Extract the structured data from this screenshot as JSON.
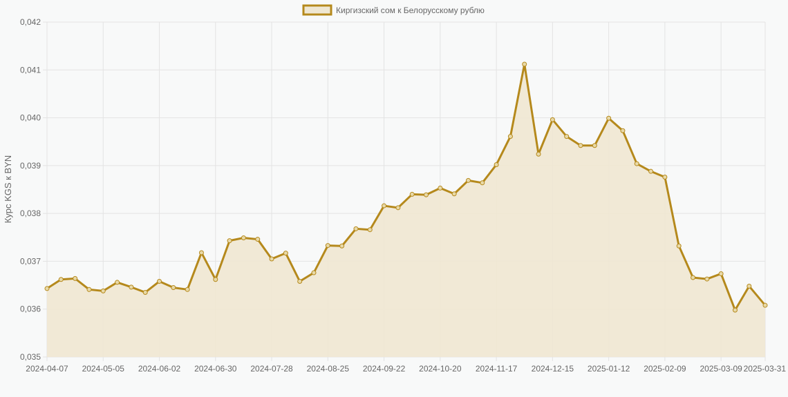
{
  "chart_data": {
    "type": "line",
    "title": "",
    "ylabel": "Курс KGS к BYN",
    "xlabel": "",
    "legend": {
      "position": "top-center",
      "entries": [
        "Киргизский сом к Белорусскому рублю"
      ]
    },
    "ylim": [
      0.035,
      0.042
    ],
    "yticks": [
      "0,035",
      "0,036",
      "0,037",
      "0,038",
      "0,039",
      "0,040",
      "0,041",
      "0,042"
    ],
    "xticks": [
      "2024-04-07",
      "2024-05-05",
      "2024-06-02",
      "2024-06-30",
      "2024-07-28",
      "2024-08-25",
      "2024-09-22",
      "2024-10-20",
      "2024-11-17",
      "2024-12-15",
      "2025-01-12",
      "2025-02-09",
      "2025-03-09",
      "2025-03-31"
    ],
    "grid": true,
    "fill": true,
    "colors": {
      "line": "#b5891c",
      "fill": "#efe7d2",
      "point_fill": "#e8d9a8",
      "grid": "#e3e3e3",
      "background": "#f8f9f9"
    },
    "series": [
      {
        "name": "Киргизский сом к Белорусскому рублю",
        "x": [
          "2024-04-07",
          "2024-04-14",
          "2024-04-21",
          "2024-04-28",
          "2024-05-05",
          "2024-05-12",
          "2024-05-19",
          "2024-05-26",
          "2024-06-02",
          "2024-06-09",
          "2024-06-16",
          "2024-06-23",
          "2024-06-30",
          "2024-07-07",
          "2024-07-14",
          "2024-07-21",
          "2024-07-28",
          "2024-08-04",
          "2024-08-11",
          "2024-08-18",
          "2024-08-25",
          "2024-09-01",
          "2024-09-08",
          "2024-09-15",
          "2024-09-22",
          "2024-09-29",
          "2024-10-06",
          "2024-10-13",
          "2024-10-20",
          "2024-10-27",
          "2024-11-03",
          "2024-11-10",
          "2024-11-17",
          "2024-11-24",
          "2024-12-01",
          "2024-12-08",
          "2024-12-15",
          "2024-12-22",
          "2024-12-29",
          "2025-01-05",
          "2025-01-12",
          "2025-01-19",
          "2025-01-26",
          "2025-02-02",
          "2025-02-09",
          "2025-02-16",
          "2025-02-23",
          "2025-03-02",
          "2025-03-09",
          "2025-03-16",
          "2025-03-23",
          "2025-03-31"
        ],
        "values": [
          0.03643,
          0.03662,
          0.03664,
          0.03641,
          0.03638,
          0.03656,
          0.03646,
          0.03635,
          0.03658,
          0.03645,
          0.03641,
          0.03718,
          0.03662,
          0.03743,
          0.03749,
          0.03746,
          0.03705,
          0.03717,
          0.03658,
          0.03676,
          0.03733,
          0.03732,
          0.03768,
          0.03766,
          0.03816,
          0.03812,
          0.0384,
          0.03839,
          0.03853,
          0.03841,
          0.03869,
          0.03864,
          0.03902,
          0.03961,
          0.04112,
          0.03924,
          0.03996,
          0.03961,
          0.03942,
          0.03942,
          0.03999,
          0.03973,
          0.03904,
          0.03888,
          0.03876,
          0.03732,
          0.03666,
          0.03663,
          0.03674,
          0.03598,
          0.03648,
          0.03608
        ]
      }
    ]
  }
}
